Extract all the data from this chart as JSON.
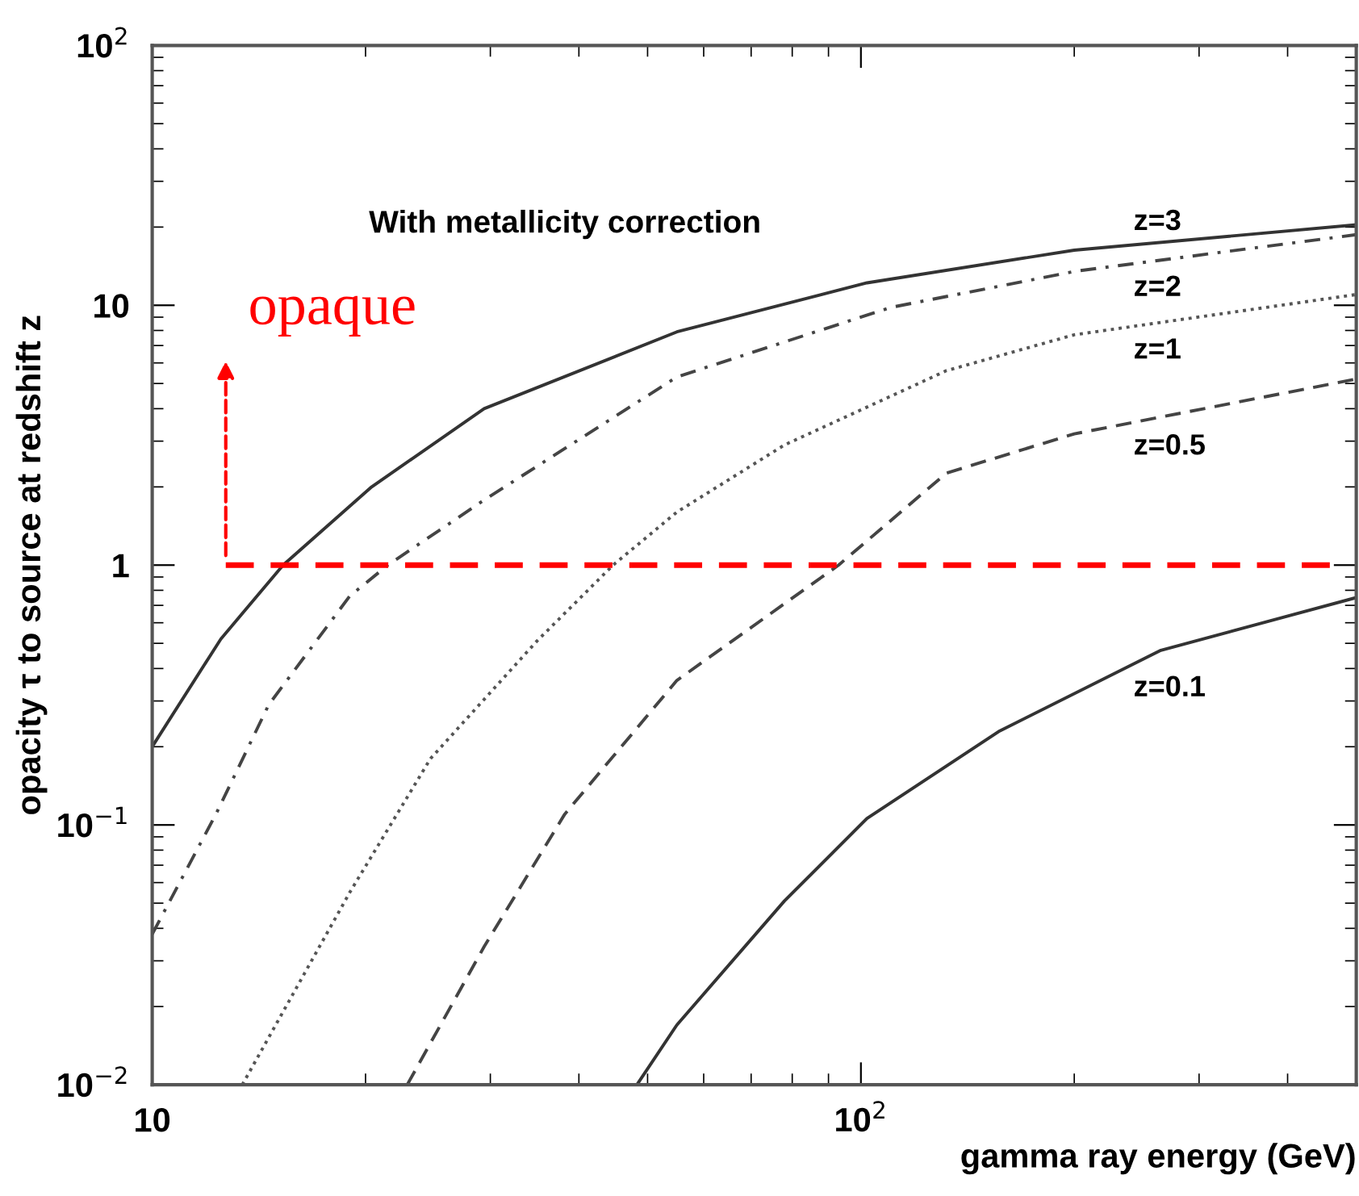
{
  "chart_data": {
    "type": "line",
    "xlabel": "gamma ray energy (GeV)",
    "ylabel": "opacity τ to source at redshift z",
    "log": "xy",
    "xlim": [
      10,
      500
    ],
    "ylim": [
      0.01,
      100
    ],
    "xticks": [
      10,
      {
        "value": 100,
        "label": "10$^{2}$"
      }
    ],
    "yticks": [
      {
        "value": 0.01,
        "label": "10$^{−2}$"
      },
      {
        "value": 0.1,
        "label": "10$^{−1}$"
      },
      1,
      10,
      {
        "value": 100,
        "label": "10$^{2}$"
      }
    ],
    "grid": false,
    "legend": false,
    "marker": "none",
    "series": [
      {
        "name": "z=3",
        "color": "#333333",
        "line_style": "solid",
        "x": [
          10,
          12.5,
          15.3,
          20.4,
          29.4,
          55,
          102,
          200,
          500
        ],
        "values": [
          0.2,
          0.52,
          1,
          2.0,
          4.0,
          7.9,
          12.2,
          16.3,
          20.4
        ]
      },
      {
        "name": "z=2",
        "color": "#444444",
        "line_style": "dashdot",
        "x": [
          10,
          12.3,
          14.6,
          19,
          21.5,
          29.4,
          55,
          110,
          200,
          500
        ],
        "values": [
          0.038,
          0.11,
          0.29,
          0.76,
          1,
          1.78,
          5.3,
          9.8,
          13.5,
          18.7
        ]
      },
      {
        "name": "z=1",
        "color": "#555555",
        "line_style": "dotted",
        "x": [
          13.4,
          19,
          24.7,
          34.9,
          44.7,
          55,
          78,
          132,
          200,
          500
        ],
        "values": [
          0.01,
          0.055,
          0.18,
          0.51,
          1,
          1.6,
          2.9,
          5.6,
          7.7,
          11
        ]
      },
      {
        "name": "z=0.5",
        "color": "#444444",
        "line_style": "dashed",
        "x": [
          22.9,
          29.4,
          38.2,
          55,
          93,
          132,
          200,
          500
        ],
        "values": [
          0.01,
          0.034,
          0.11,
          0.36,
          1,
          2.26,
          3.2,
          5.2
        ]
      },
      {
        "name": "z=0.1",
        "color": "#333333",
        "line_style": "solid",
        "x": [
          48.3,
          55,
          78,
          102,
          157,
          265,
          500
        ],
        "values": [
          0.01,
          0.017,
          0.051,
          0.106,
          0.23,
          0.47,
          0.75
        ]
      }
    ],
    "ref_lines": [
      {
        "axis": "y",
        "value": 1,
        "color": "#ff0000",
        "line_style": "dashed"
      }
    ],
    "annotations": [
      "With metallicity correction",
      {
        "text": "opaque",
        "x": 12.7,
        "y": 1
      }
    ]
  }
}
